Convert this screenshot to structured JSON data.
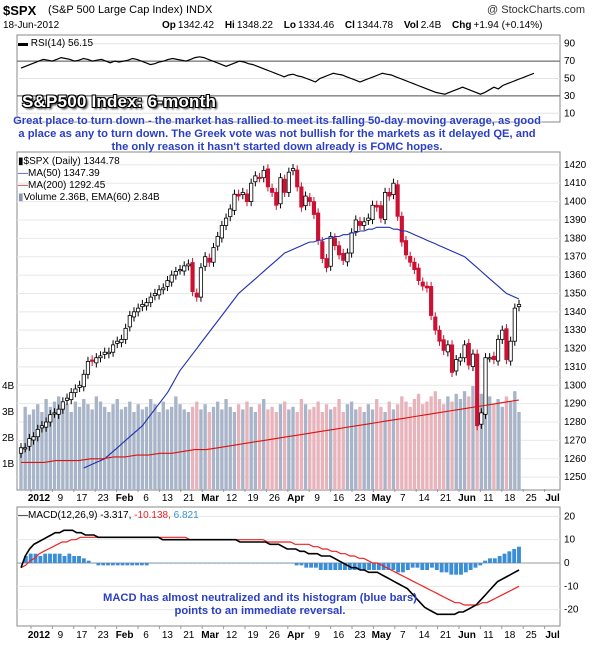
{
  "header": {
    "symbol": "$SPX",
    "symbol_name": "(S&P 500 Large Cap Index) INDX",
    "brand": "@ StockCharts.com",
    "date": "18-Jun-2012",
    "ohlc": [
      {
        "label": "Op",
        "value": "1342.42"
      },
      {
        "label": "Hi",
        "value": "1348.22"
      },
      {
        "label": "Lo",
        "value": "1334.46"
      },
      {
        "label": "Cl",
        "value": "1344.78"
      },
      {
        "label": "Vol",
        "value": "2.4B"
      },
      {
        "label": "Chg",
        "value": "+1.94 (+0.14%)"
      }
    ]
  },
  "annotations": {
    "title": "S&P500 Index: 6-month",
    "comment": "Great place to turn down - the market has rallied to meet its falling 50-day moving average, as good a place as any to turn down. The Greek vote was not bullish for the markets as it delayed QE, and the only reason it hasn't started down already is FOMC hopes.",
    "macd_note": "MACD has almost neutralized and its histogram (blue bars) points to an immediate reversal."
  },
  "legend": {
    "rsi": "RSI(14) 56.15",
    "price": "$SPX (Daily) 1344.78",
    "ma50": "MA(50) 1347.39",
    "ma200": "MA(200) 1292.45",
    "volume": "Volume 2.36B, EMA(60) 2.84B",
    "macd_prefix": "MACD(12,26,9)",
    "macd_value": "-3.317,",
    "signal_value": "-10.138,",
    "hist_value": "6.821"
  },
  "colors": {
    "ma50": "#2030b0",
    "ma200": "#dd1111",
    "up_candle": "#000000",
    "down_candle": "#cc1133",
    "volume_up": "#a8b4c8",
    "volume_down": "#e8b4bc",
    "histogram": "#3a8ed8",
    "macd_line": "#000000",
    "signal_line": "#ee2222",
    "title_text": "#ffffff",
    "comment_text": "#2a3fc6"
  },
  "chart_data": {
    "type": "candlestick",
    "x_axis_labels": [
      "2012",
      "9",
      "17",
      "23",
      "Feb",
      "6",
      "13",
      "21",
      "Mar",
      "12",
      "19",
      "26",
      "Apr",
      "9",
      "16",
      "23",
      "May",
      "7",
      "14",
      "21",
      "Jun",
      "11",
      "18",
      "25",
      "Jul"
    ],
    "rsi": {
      "ticks": [
        90,
        70,
        50,
        30,
        10
      ],
      "levels": [
        70,
        30
      ],
      "values": [
        62,
        64,
        66,
        68,
        70,
        72,
        71,
        70,
        72,
        74,
        73,
        72,
        70,
        71,
        73,
        72,
        70,
        71,
        72,
        70,
        68,
        70,
        69,
        70,
        71,
        73,
        72,
        70,
        68,
        66,
        67,
        69,
        70,
        72,
        73,
        72,
        71,
        70,
        72,
        74,
        75,
        74,
        72,
        70,
        68,
        66,
        64,
        66,
        68,
        70,
        69,
        67,
        66,
        64,
        62,
        60,
        58,
        56,
        54,
        52,
        54,
        55,
        53,
        52,
        50,
        48,
        46,
        50,
        52,
        54,
        56,
        55,
        54,
        52,
        50,
        48,
        46,
        48,
        50,
        52,
        54,
        56,
        55,
        54,
        52,
        50,
        48,
        46,
        44,
        42,
        40,
        38,
        36,
        34,
        33,
        32,
        34,
        36,
        38,
        40,
        38,
        36,
        34,
        32,
        34,
        37,
        40,
        38,
        42,
        44,
        46,
        48,
        50,
        52,
        54,
        56
      ]
    },
    "price": {
      "y_ticks": [
        1420,
        1410,
        1400,
        1390,
        1380,
        1370,
        1360,
        1350,
        1340,
        1330,
        1320,
        1310,
        1300,
        1290,
        1280,
        1270,
        1260,
        1250
      ],
      "volume_ticks": [
        "4B",
        "3B",
        "2B",
        "1B"
      ],
      "close": [
        1266,
        1266,
        1271,
        1272,
        1276,
        1278,
        1280,
        1284,
        1285,
        1287,
        1291,
        1293,
        1296,
        1298,
        1300,
        1306,
        1313,
        1313,
        1315,
        1316,
        1318,
        1318,
        1322,
        1324,
        1325,
        1331,
        1338,
        1340,
        1342,
        1344,
        1345,
        1348,
        1350,
        1352,
        1353,
        1357,
        1360,
        1362,
        1363,
        1365,
        1366,
        1351,
        1348,
        1364,
        1370,
        1367,
        1375,
        1381,
        1387,
        1391,
        1396,
        1404,
        1403,
        1405,
        1400,
        1410,
        1414,
        1413,
        1417,
        1408,
        1405,
        1398,
        1413,
        1405,
        1416,
        1418,
        1408,
        1397,
        1403,
        1400,
        1393,
        1379,
        1369,
        1364,
        1381,
        1376,
        1371,
        1368,
        1372,
        1383,
        1390,
        1387,
        1389,
        1391,
        1398,
        1397,
        1391,
        1405,
        1403,
        1410,
        1392,
        1378,
        1371,
        1367,
        1363,
        1357,
        1354,
        1353,
        1338,
        1330,
        1324,
        1319,
        1322,
        1307,
        1314,
        1315,
        1322,
        1311,
        1317,
        1278,
        1285,
        1315,
        1315,
        1314,
        1325,
        1330,
        1314,
        1324,
        1342,
        1344
      ],
      "ma50": [
        1255,
        1256,
        1257,
        1258,
        1259,
        1260,
        1262,
        1264,
        1266,
        1268,
        1270,
        1272,
        1274,
        1276,
        1278,
        1281,
        1284,
        1287,
        1290,
        1293,
        1296,
        1300,
        1304,
        1308,
        1311,
        1314,
        1317,
        1320,
        1323,
        1326,
        1329,
        1332,
        1335,
        1338,
        1341,
        1344,
        1347,
        1350,
        1352,
        1354,
        1356,
        1358,
        1360,
        1362,
        1364,
        1366,
        1368,
        1370,
        1372,
        1373,
        1374,
        1375,
        1376,
        1377,
        1378,
        1378,
        1379,
        1379,
        1380,
        1380,
        1381,
        1381,
        1382,
        1382,
        1383,
        1383,
        1384,
        1384,
        1385,
        1385,
        1386,
        1386,
        1386,
        1386,
        1385,
        1385,
        1384,
        1384,
        1383,
        1382,
        1381,
        1380,
        1379,
        1378,
        1377,
        1376,
        1375,
        1374,
        1373,
        1372,
        1371,
        1370,
        1368,
        1366,
        1364,
        1362,
        1360,
        1358,
        1356,
        1354,
        1352,
        1350,
        1349,
        1348,
        1347
      ],
      "ma200": [
        1258,
        1258,
        1258,
        1259,
        1259,
        1259,
        1260,
        1260,
        1261,
        1261,
        1262,
        1262,
        1263,
        1263,
        1264,
        1265,
        1265,
        1266,
        1267,
        1268,
        1269,
        1270,
        1271,
        1272,
        1273,
        1274,
        1275,
        1276,
        1277,
        1278,
        1279,
        1280,
        1281,
        1282,
        1283,
        1284,
        1285,
        1286,
        1287,
        1288,
        1289,
        1290,
        1291,
        1292
      ],
      "volume": [
        1.4,
        3.2,
        2.9,
        3.1,
        3.3,
        3.0,
        3.5,
        3.2,
        3.4,
        3.6,
        3.1,
        3.3,
        3.0,
        3.4,
        3.2,
        3.5,
        3.3,
        3.1,
        3.6,
        3.4,
        3.2,
        3.0,
        3.3,
        3.5,
        3.1,
        3.2,
        3.4,
        3.0,
        3.3,
        3.1,
        3.2,
        3.5,
        3.3,
        3.0,
        3.4,
        3.1,
        3.2,
        3.6,
        3.3,
        3.1,
        3.0,
        3.2,
        3.4,
        3.1,
        3.3,
        3.0,
        3.2,
        3.4,
        3.1,
        3.5,
        3.2,
        3.0,
        3.3,
        3.1,
        3.4,
        3.2,
        3.0,
        3.3,
        3.5,
        3.1,
        3.2,
        3.0,
        3.3,
        3.4,
        3.1,
        3.2,
        3.0,
        3.5,
        3.3,
        3.1,
        3.2,
        3.4,
        3.0,
        3.3,
        3.1,
        3.2,
        3.5,
        3.0,
        3.3,
        3.4,
        3.1,
        3.2,
        3.0,
        3.3,
        3.1,
        3.5,
        3.2,
        3.0,
        3.4,
        3.1,
        3.3,
        3.6,
        3.4,
        3.2,
        3.5,
        3.7,
        3.3,
        3.4,
        3.6,
        3.8,
        3.5,
        3.3,
        3.6,
        3.4,
        3.7,
        3.5,
        3.8,
        3.6,
        4.0,
        4.1,
        3.7,
        3.4,
        3.6,
        3.3,
        3.5,
        3.2,
        3.6,
        3.4,
        3.8,
        3.0
      ]
    },
    "macd": {
      "y_ticks": [
        20,
        10,
        0,
        -10,
        -20
      ],
      "macd": [
        -2,
        3,
        6,
        8,
        9,
        10,
        11,
        12,
        13,
        13,
        14,
        14,
        14,
        13,
        13,
        12,
        12,
        12,
        11,
        11,
        11,
        11,
        11,
        11,
        11,
        11,
        11,
        11,
        11,
        11,
        11,
        11,
        11,
        10,
        10,
        10,
        10,
        10,
        10,
        10,
        10,
        10,
        10,
        10,
        10,
        10,
        10,
        10,
        10,
        10,
        10,
        9,
        9,
        9,
        9,
        9,
        9,
        9,
        8,
        8,
        8,
        7,
        6,
        6,
        6,
        5,
        5,
        4,
        4,
        4,
        3,
        3,
        3,
        2,
        1,
        0,
        -1,
        -2,
        -2,
        -3,
        -3,
        -4,
        -4,
        -4,
        -5,
        -6,
        -7,
        -8,
        -9,
        -10,
        -11,
        -13,
        -15,
        -17,
        -19,
        -20,
        -21,
        -22,
        -22,
        -22,
        -22,
        -22,
        -21,
        -21,
        -20,
        -19,
        -18,
        -16,
        -14,
        -12,
        -10,
        -8,
        -7,
        -6,
        -5,
        -4,
        -3
      ],
      "signal": [
        -2,
        -1,
        1,
        2,
        4,
        5,
        6,
        7,
        8,
        9,
        9,
        10,
        10,
        11,
        11,
        11,
        11,
        11,
        11,
        11,
        11,
        11,
        11,
        11,
        11,
        11,
        11,
        11,
        11,
        11,
        11,
        11,
        11,
        11,
        11,
        11,
        11,
        10,
        10,
        10,
        10,
        10,
        10,
        10,
        10,
        10,
        10,
        10,
        10,
        10,
        10,
        10,
        10,
        10,
        9,
        9,
        9,
        9,
        9,
        9,
        8,
        8,
        8,
        8,
        7,
        7,
        6,
        6,
        5,
        5,
        4,
        4,
        3,
        3,
        2,
        2,
        1,
        0,
        0,
        -1,
        -2,
        -3,
        -4,
        -5,
        -6,
        -7,
        -8,
        -9,
        -10,
        -11,
        -12,
        -13,
        -14,
        -15,
        -16,
        -17,
        -17,
        -18,
        -18,
        -18,
        -18,
        -17,
        -17,
        -16,
        -15,
        -14,
        -13,
        -12,
        -11,
        -10
      ],
      "histogram": [
        0,
        3,
        4,
        4,
        3,
        4,
        4,
        4,
        4,
        3,
        4,
        3,
        3,
        2,
        1,
        0,
        -1,
        -1,
        -1,
        -1,
        -1,
        -1,
        -1,
        -1,
        -1,
        -1,
        -1,
        0,
        0,
        0,
        0,
        0,
        0,
        0,
        0,
        0,
        0,
        0,
        0,
        0,
        0,
        0,
        0,
        0,
        0,
        0,
        0,
        0,
        0,
        0,
        0,
        0,
        0,
        0,
        0,
        0,
        0,
        -1,
        -1,
        -2,
        -2,
        -2,
        -3,
        -3,
        -3,
        -3,
        -3,
        -3,
        -3,
        -3,
        -3,
        -3,
        -3,
        -3,
        -3,
        -3,
        -3,
        -3,
        -4,
        -4,
        -3,
        -2,
        -2,
        -3,
        -3,
        -2,
        -3,
        -4,
        -4,
        -5,
        -5,
        -5,
        -4,
        -3,
        -2,
        -1,
        1,
        2,
        2,
        3,
        4,
        5,
        6,
        7
      ]
    }
  }
}
